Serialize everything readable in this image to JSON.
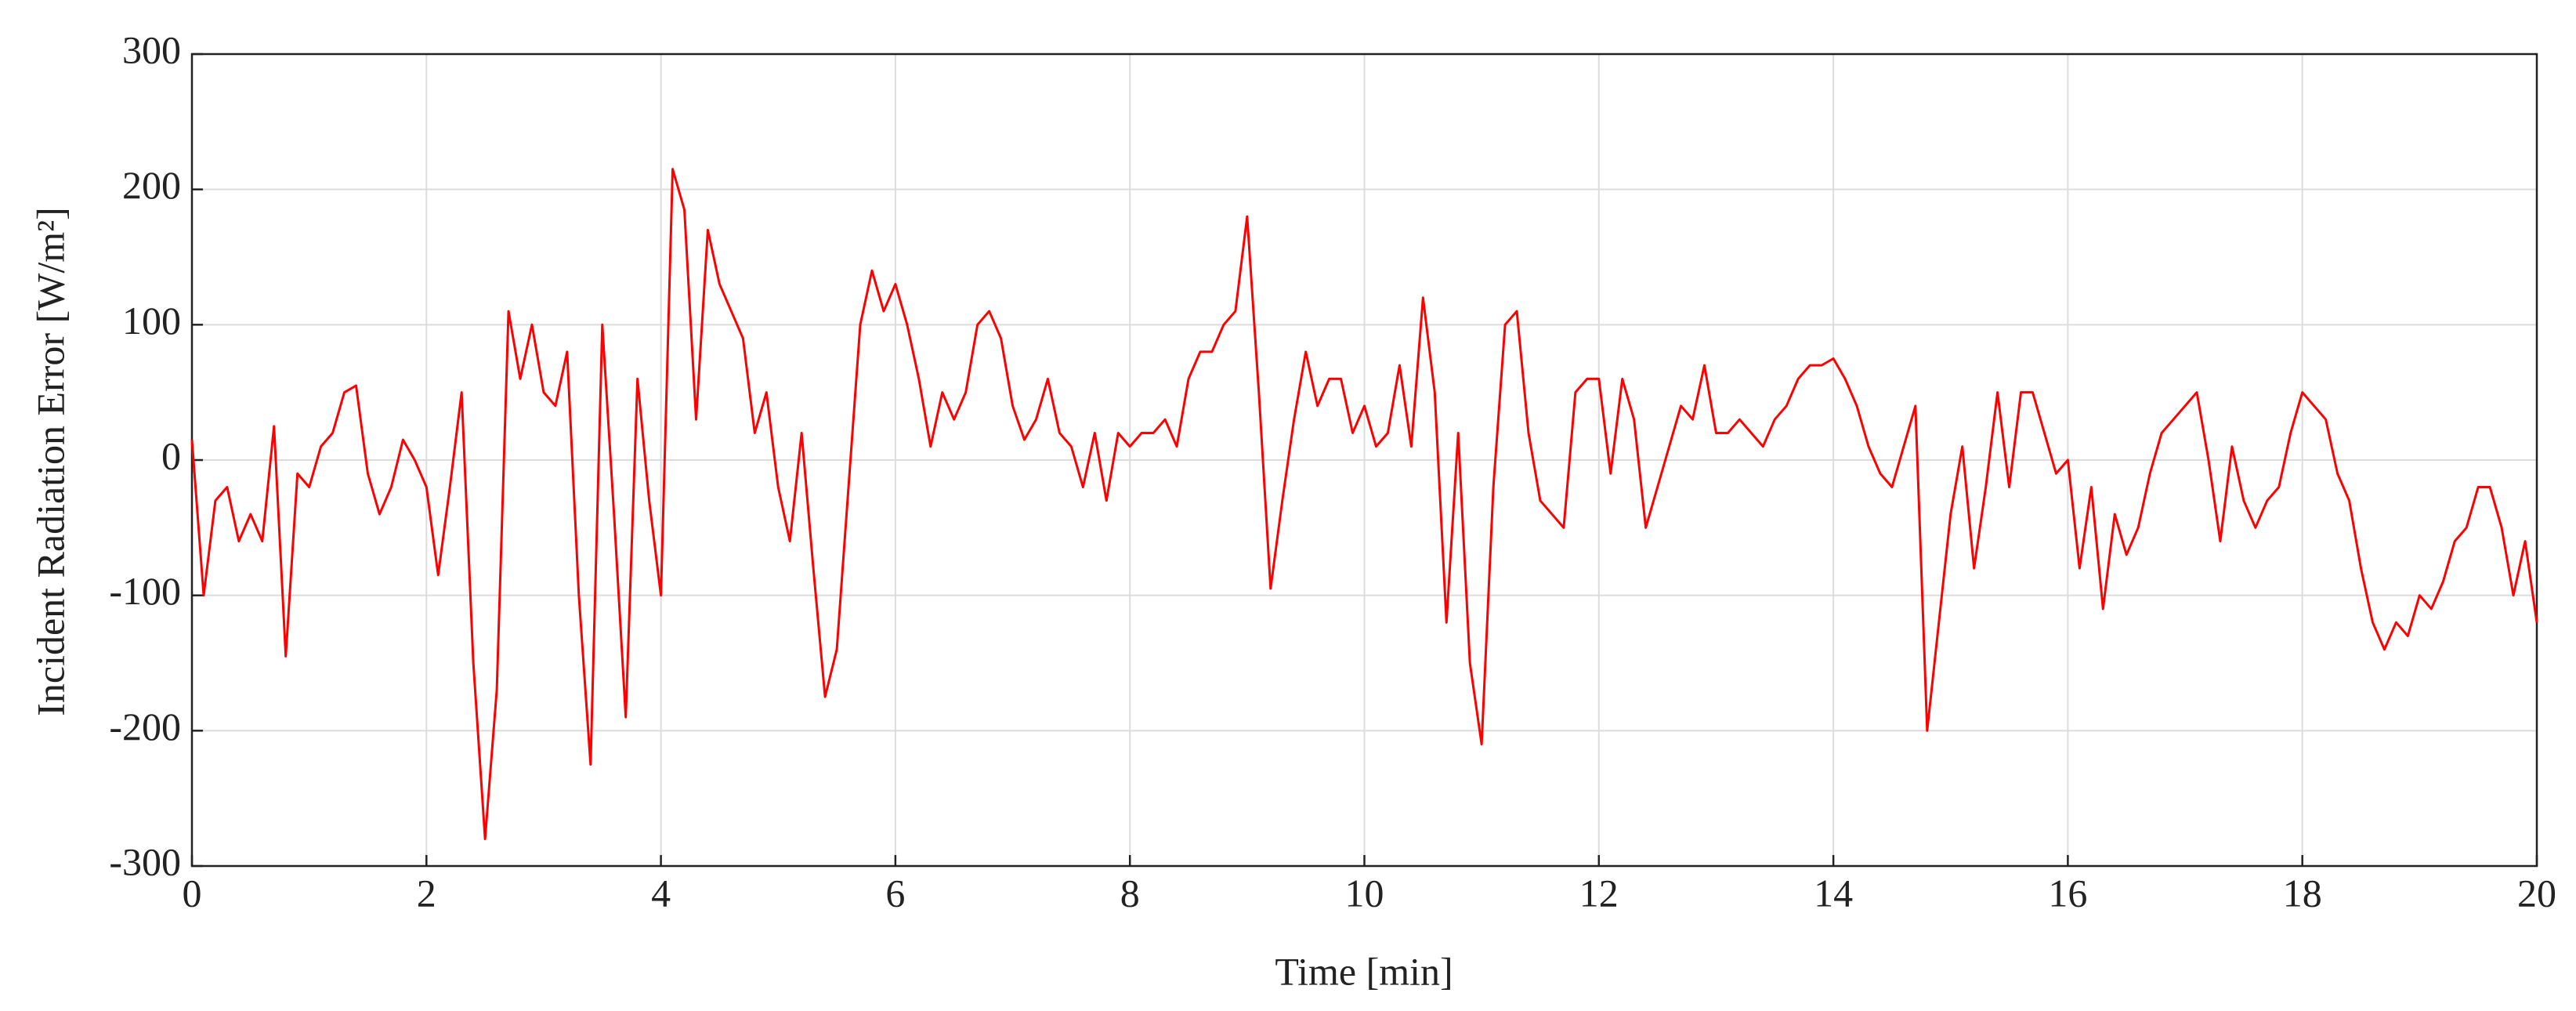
{
  "chart_data": {
    "type": "line",
    "xlabel": "Time [min]",
    "ylabel": "Incident Radiation Error [W/m²]",
    "x": [
      0,
      0.1,
      0.2,
      0.3,
      0.4,
      0.5,
      0.6,
      0.7,
      0.8,
      0.9,
      1,
      1.1,
      1.2,
      1.3,
      1.4,
      1.5,
      1.6,
      1.7,
      1.8,
      1.9,
      2,
      2.1,
      2.2,
      2.3,
      2.4,
      2.5,
      2.6,
      2.7,
      2.8,
      2.9,
      3,
      3.1,
      3.2,
      3.3,
      3.4,
      3.5,
      3.6,
      3.7,
      3.8,
      3.9,
      4,
      4.1,
      4.2,
      4.3,
      4.4,
      4.5,
      4.6,
      4.7,
      4.8,
      4.9,
      5,
      5.1,
      5.2,
      5.3,
      5.4,
      5.5,
      5.6,
      5.7,
      5.8,
      5.9,
      6,
      6.1,
      6.2,
      6.3,
      6.4,
      6.5,
      6.6,
      6.7,
      6.8,
      6.9,
      7,
      7.1,
      7.2,
      7.3,
      7.4,
      7.5,
      7.6,
      7.7,
      7.8,
      7.9,
      8,
      8.1,
      8.2,
      8.3,
      8.4,
      8.5,
      8.6,
      8.7,
      8.8,
      8.9,
      9,
      9.1,
      9.2,
      9.3,
      9.4,
      9.5,
      9.6,
      9.7,
      9.8,
      9.9,
      10,
      10.1,
      10.2,
      10.3,
      10.4,
      10.5,
      10.6,
      10.7,
      10.8,
      10.9,
      11,
      11.1,
      11.2,
      11.3,
      11.4,
      11.5,
      11.6,
      11.7,
      11.8,
      11.9,
      12,
      12.1,
      12.2,
      12.3,
      12.4,
      12.5,
      12.6,
      12.7,
      12.8,
      12.9,
      13,
      13.1,
      13.2,
      13.3,
      13.4,
      13.5,
      13.6,
      13.7,
      13.8,
      13.9,
      14,
      14.1,
      14.2,
      14.3,
      14.4,
      14.5,
      14.6,
      14.7,
      14.8,
      14.9,
      15,
      15.1,
      15.2,
      15.3,
      15.4,
      15.5,
      15.6,
      15.7,
      15.8,
      15.9,
      16,
      16.1,
      16.2,
      16.3,
      16.4,
      16.5,
      16.6,
      16.7,
      16.8,
      16.9,
      17,
      17.1,
      17.2,
      17.3,
      17.4,
      17.5,
      17.6,
      17.7,
      17.8,
      17.9,
      18,
      18.1,
      18.2,
      18.3,
      18.4,
      18.5,
      18.6,
      18.7,
      18.8,
      18.9,
      19,
      19.1,
      19.2,
      19.3,
      19.4,
      19.5,
      19.6,
      19.7,
      19.8,
      19.9,
      20
    ],
    "series": [
      {
        "color": "#ff0000",
        "values": [
          15,
          -100,
          -30,
          -20,
          -60,
          -40,
          -60,
          25,
          -145,
          -10,
          -20,
          10,
          20,
          50,
          55,
          -10,
          -40,
          -20,
          15,
          0,
          -20,
          -85,
          -20,
          50,
          -150,
          -280,
          -170,
          110,
          60,
          100,
          50,
          40,
          80,
          -100,
          -225,
          100,
          -40,
          -190,
          60,
          -30,
          -100,
          215,
          185,
          30,
          170,
          130,
          110,
          90,
          20,
          50,
          -20,
          -60,
          20,
          -80,
          -175,
          -140,
          -20,
          100,
          140,
          110,
          130,
          100,
          60,
          10,
          50,
          30,
          50,
          100,
          110,
          90,
          40,
          15,
          30,
          60,
          20,
          10,
          -20,
          20,
          -30,
          20,
          10,
          20,
          20,
          30,
          10,
          60,
          80,
          80,
          100,
          110,
          180,
          50,
          -95,
          -30,
          30,
          80,
          40,
          60,
          60,
          20,
          40,
          10,
          20,
          70,
          10,
          120,
          50,
          -120,
          20,
          -150,
          -210,
          -20,
          100,
          110,
          20,
          -30,
          -40,
          -50,
          50,
          60,
          60,
          -10,
          60,
          30,
          -50,
          -20,
          10,
          40,
          30,
          70,
          20,
          20,
          30,
          20,
          10,
          30,
          40,
          60,
          70,
          70,
          75,
          60,
          40,
          10,
          -10,
          -20,
          10,
          40,
          -200,
          -120,
          -40,
          10,
          -80,
          -20,
          50,
          -20,
          50,
          50,
          20,
          -10,
          0,
          -80,
          -20,
          -110,
          -40,
          -70,
          -50,
          -10,
          20,
          30,
          40,
          50,
          0,
          -60,
          10,
          -30,
          -50,
          -30,
          -20,
          20,
          50,
          40,
          30,
          -10,
          -30,
          -80,
          -120,
          -140,
          -120,
          -130,
          -100,
          -110,
          -90,
          -60,
          -50,
          -20,
          -20,
          -50,
          -100,
          -60,
          -120
        ]
      }
    ],
    "xlim": [
      0,
      20
    ],
    "xticks": [
      0,
      2,
      4,
      6,
      8,
      10,
      12,
      14,
      16,
      18,
      20
    ],
    "ylim": [
      -300,
      300
    ],
    "yticks": [
      -300,
      -200,
      -100,
      0,
      100,
      200,
      300
    ],
    "grid": true
  }
}
